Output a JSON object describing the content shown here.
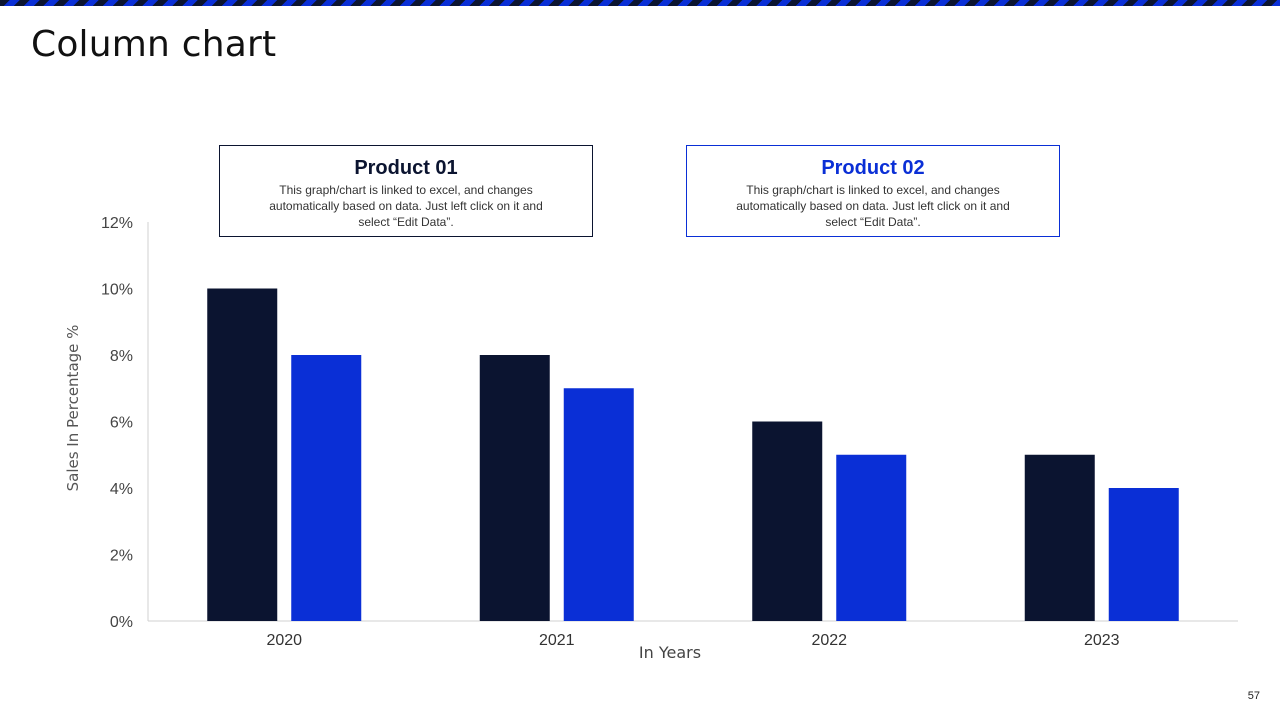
{
  "page": {
    "title": "Column chart",
    "page_number": "57"
  },
  "legend": [
    {
      "name": "Product 01",
      "description": "This graph/chart is linked to excel, and changes automatically based on data. Just left click on it and select “Edit Data”.",
      "color": "#0b1430"
    },
    {
      "name": "Product 02",
      "description": "This graph/chart is linked to excel, and changes automatically based on data. Just left click on it and select “Edit Data”.",
      "color": "#0a2fd6"
    }
  ],
  "chart_data": {
    "type": "bar",
    "categories": [
      "2020",
      "2021",
      "2022",
      "2023"
    ],
    "series": [
      {
        "name": "Product 01",
        "values": [
          10,
          8,
          6,
          5
        ],
        "color": "#0b1430"
      },
      {
        "name": "Product 02",
        "values": [
          8,
          7,
          5,
          4
        ],
        "color": "#0a2fd6"
      }
    ],
    "xlabel": "In Years",
    "ylabel": "Sales In Percentage %",
    "ylim": [
      0,
      12
    ],
    "yticks": [
      "0%",
      "2%",
      "4%",
      "6%",
      "8%",
      "10%",
      "12%"
    ],
    "grid": false,
    "legend_position": "top"
  }
}
